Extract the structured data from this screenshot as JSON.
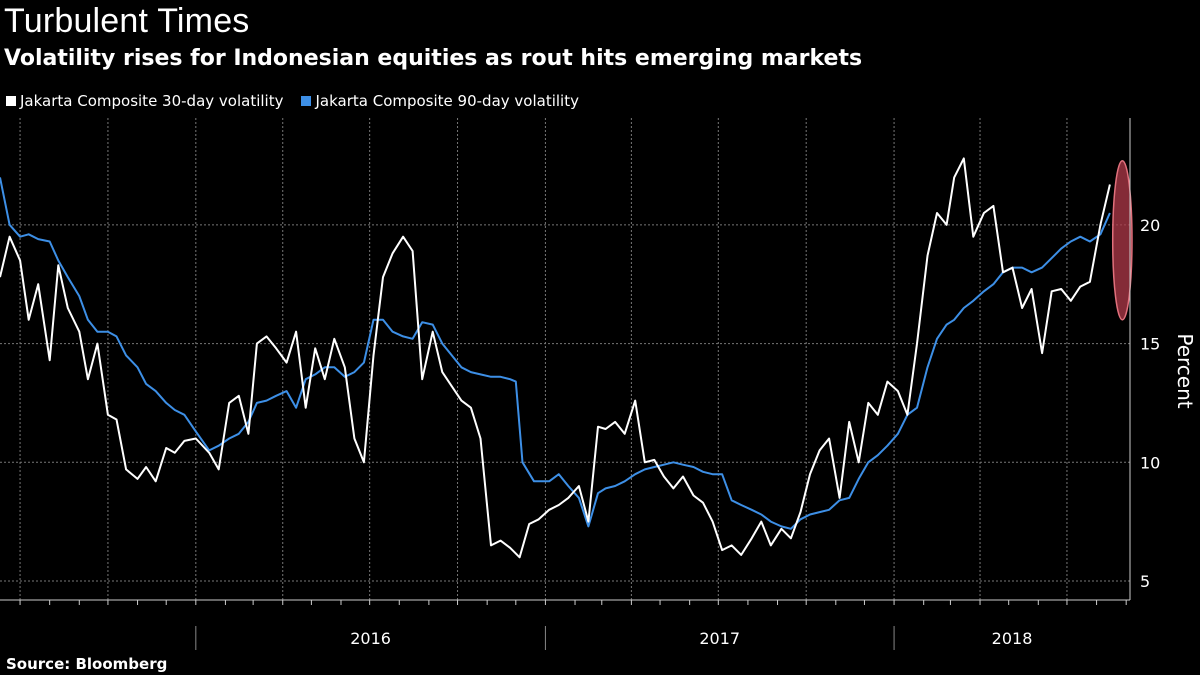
{
  "header": {
    "title": "Turbulent Times",
    "subtitle": "Volatility rises for Indonesian equities as rout hits emerging markets"
  },
  "legend": {
    "items": [
      {
        "label": "Jakarta Composite 30-day volatility",
        "color": "#ffffff"
      },
      {
        "label": "Jakarta Composite 90-day volatility",
        "color": "#3d8fe6"
      }
    ]
  },
  "footer": {
    "source": "Source: Bloomberg"
  },
  "chart_data": {
    "type": "line",
    "title": "Turbulent Times",
    "subtitle": "Volatility rises for Indonesian equities as rout hits emerging markets",
    "ylabel": "Percent",
    "xlabel": "",
    "ylim": [
      4.2,
      24.5
    ],
    "xlim": [
      "2015-06-10",
      "2018-09-05"
    ],
    "yticks": [
      5,
      10,
      15,
      20
    ],
    "year_labels": [
      "2016",
      "2017",
      "2018"
    ],
    "grid": true,
    "legend_position": "top-left",
    "highlight": {
      "x_from": "2018-08-20",
      "x_to": "2018-09-05",
      "y_from": 16.0,
      "y_to": 22.7,
      "color": "#b03a4a"
    },
    "series": [
      {
        "name": "Jakarta Composite 30-day volatility",
        "color": "#ffffff",
        "points": [
          [
            "2015-06-10",
            17.8
          ],
          [
            "2015-06-20",
            19.5
          ],
          [
            "2015-07-01",
            18.5
          ],
          [
            "2015-07-10",
            16.0
          ],
          [
            "2015-07-20",
            17.5
          ],
          [
            "2015-08-01",
            14.3
          ],
          [
            "2015-08-10",
            18.3
          ],
          [
            "2015-08-20",
            16.5
          ],
          [
            "2015-09-01",
            15.5
          ],
          [
            "2015-09-10",
            13.5
          ],
          [
            "2015-09-20",
            15.0
          ],
          [
            "2015-10-01",
            12.0
          ],
          [
            "2015-10-10",
            11.8
          ],
          [
            "2015-10-20",
            9.7
          ],
          [
            "2015-11-01",
            9.3
          ],
          [
            "2015-11-10",
            9.8
          ],
          [
            "2015-11-20",
            9.2
          ],
          [
            "2015-12-01",
            10.6
          ],
          [
            "2015-12-10",
            10.4
          ],
          [
            "2015-12-20",
            10.9
          ],
          [
            "2016-01-01",
            11.0
          ],
          [
            "2016-01-15",
            10.4
          ],
          [
            "2016-01-25",
            9.7
          ],
          [
            "2016-02-05",
            12.5
          ],
          [
            "2016-02-15",
            12.8
          ],
          [
            "2016-02-25",
            11.2
          ],
          [
            "2016-03-05",
            15.0
          ],
          [
            "2016-03-15",
            15.3
          ],
          [
            "2016-03-25",
            14.8
          ],
          [
            "2016-04-05",
            14.2
          ],
          [
            "2016-04-15",
            15.5
          ],
          [
            "2016-04-25",
            12.3
          ],
          [
            "2016-05-05",
            14.8
          ],
          [
            "2016-05-15",
            13.5
          ],
          [
            "2016-05-25",
            15.2
          ],
          [
            "2016-06-05",
            14.0
          ],
          [
            "2016-06-15",
            11.0
          ],
          [
            "2016-06-25",
            10.0
          ],
          [
            "2016-07-05",
            14.5
          ],
          [
            "2016-07-15",
            17.8
          ],
          [
            "2016-07-25",
            18.8
          ],
          [
            "2016-08-05",
            19.5
          ],
          [
            "2016-08-15",
            18.9
          ],
          [
            "2016-08-25",
            13.5
          ],
          [
            "2016-09-05",
            15.5
          ],
          [
            "2016-09-15",
            13.8
          ],
          [
            "2016-09-25",
            13.2
          ],
          [
            "2016-10-05",
            12.6
          ],
          [
            "2016-10-15",
            12.3
          ],
          [
            "2016-10-25",
            11.0
          ],
          [
            "2016-11-05",
            6.5
          ],
          [
            "2016-11-15",
            6.7
          ],
          [
            "2016-11-25",
            6.4
          ],
          [
            "2016-12-05",
            6.0
          ],
          [
            "2016-12-15",
            7.4
          ],
          [
            "2016-12-25",
            7.6
          ],
          [
            "2017-01-05",
            8.0
          ],
          [
            "2017-01-15",
            8.2
          ],
          [
            "2017-01-25",
            8.5
          ],
          [
            "2017-02-05",
            9.0
          ],
          [
            "2017-02-15",
            7.5
          ],
          [
            "2017-02-25",
            11.5
          ],
          [
            "2017-03-05",
            11.4
          ],
          [
            "2017-03-15",
            11.7
          ],
          [
            "2017-03-25",
            11.2
          ],
          [
            "2017-04-05",
            12.6
          ],
          [
            "2017-04-15",
            10.0
          ],
          [
            "2017-04-25",
            10.1
          ],
          [
            "2017-05-05",
            9.4
          ],
          [
            "2017-05-15",
            8.9
          ],
          [
            "2017-05-25",
            9.4
          ],
          [
            "2017-06-05",
            8.6
          ],
          [
            "2017-06-15",
            8.3
          ],
          [
            "2017-06-25",
            7.5
          ],
          [
            "2017-07-05",
            6.3
          ],
          [
            "2017-07-15",
            6.5
          ],
          [
            "2017-07-25",
            6.1
          ],
          [
            "2017-08-05",
            6.8
          ],
          [
            "2017-08-15",
            7.5
          ],
          [
            "2017-08-25",
            6.5
          ],
          [
            "2017-09-05",
            7.2
          ],
          [
            "2017-09-15",
            6.8
          ],
          [
            "2017-09-25",
            7.9
          ],
          [
            "2017-10-05",
            9.5
          ],
          [
            "2017-10-15",
            10.5
          ],
          [
            "2017-10-25",
            11.0
          ],
          [
            "2017-11-05",
            8.5
          ],
          [
            "2017-11-15",
            11.7
          ],
          [
            "2017-11-25",
            10.0
          ],
          [
            "2017-12-05",
            12.5
          ],
          [
            "2017-12-15",
            12.0
          ],
          [
            "2017-12-25",
            13.4
          ],
          [
            "2018-01-05",
            13.0
          ],
          [
            "2018-01-15",
            12.0
          ],
          [
            "2018-01-25",
            15.0
          ],
          [
            "2018-02-05",
            18.7
          ],
          [
            "2018-02-15",
            20.5
          ],
          [
            "2018-02-25",
            20.0
          ],
          [
            "2018-03-05",
            22.0
          ],
          [
            "2018-03-15",
            22.8
          ],
          [
            "2018-03-25",
            19.5
          ],
          [
            "2018-04-05",
            20.5
          ],
          [
            "2018-04-15",
            20.8
          ],
          [
            "2018-04-25",
            18.0
          ],
          [
            "2018-05-05",
            18.2
          ],
          [
            "2018-05-15",
            16.5
          ],
          [
            "2018-05-25",
            17.3
          ],
          [
            "2018-06-05",
            14.6
          ],
          [
            "2018-06-15",
            17.2
          ],
          [
            "2018-06-25",
            17.3
          ],
          [
            "2018-07-05",
            16.8
          ],
          [
            "2018-07-15",
            17.4
          ],
          [
            "2018-07-25",
            17.6
          ],
          [
            "2018-08-05",
            20.0
          ],
          [
            "2018-08-15",
            21.7
          ]
        ]
      },
      {
        "name": "Jakarta Composite 90-day volatility",
        "color": "#3d8fe6",
        "points": [
          [
            "2015-06-10",
            22.0
          ],
          [
            "2015-06-20",
            20.0
          ],
          [
            "2015-07-01",
            19.5
          ],
          [
            "2015-07-10",
            19.6
          ],
          [
            "2015-07-20",
            19.4
          ],
          [
            "2015-08-01",
            19.3
          ],
          [
            "2015-08-10",
            18.5
          ],
          [
            "2015-08-20",
            17.8
          ],
          [
            "2015-09-01",
            17.0
          ],
          [
            "2015-09-10",
            16.0
          ],
          [
            "2015-09-20",
            15.5
          ],
          [
            "2015-10-01",
            15.5
          ],
          [
            "2015-10-10",
            15.3
          ],
          [
            "2015-10-20",
            14.5
          ],
          [
            "2015-11-01",
            14.0
          ],
          [
            "2015-11-10",
            13.3
          ],
          [
            "2015-11-20",
            13.0
          ],
          [
            "2015-12-01",
            12.5
          ],
          [
            "2015-12-10",
            12.2
          ],
          [
            "2015-12-20",
            12.0
          ],
          [
            "2016-01-01",
            11.3
          ],
          [
            "2016-01-15",
            10.5
          ],
          [
            "2016-01-25",
            10.7
          ],
          [
            "2016-02-05",
            11.0
          ],
          [
            "2016-02-15",
            11.2
          ],
          [
            "2016-02-25",
            11.7
          ],
          [
            "2016-03-05",
            12.5
          ],
          [
            "2016-03-15",
            12.6
          ],
          [
            "2016-03-25",
            12.8
          ],
          [
            "2016-04-05",
            13.0
          ],
          [
            "2016-04-15",
            12.3
          ],
          [
            "2016-04-25",
            13.5
          ],
          [
            "2016-05-05",
            13.7
          ],
          [
            "2016-05-15",
            14.0
          ],
          [
            "2016-05-25",
            14.0
          ],
          [
            "2016-06-05",
            13.6
          ],
          [
            "2016-06-15",
            13.8
          ],
          [
            "2016-06-25",
            14.2
          ],
          [
            "2016-07-05",
            16.0
          ],
          [
            "2016-07-15",
            16.0
          ],
          [
            "2016-07-25",
            15.5
          ],
          [
            "2016-08-05",
            15.3
          ],
          [
            "2016-08-15",
            15.2
          ],
          [
            "2016-08-25",
            15.9
          ],
          [
            "2016-09-05",
            15.8
          ],
          [
            "2016-09-15",
            15.0
          ],
          [
            "2016-09-25",
            14.5
          ],
          [
            "2016-10-05",
            14.0
          ],
          [
            "2016-10-15",
            13.8
          ],
          [
            "2016-10-25",
            13.7
          ],
          [
            "2016-11-05",
            13.6
          ],
          [
            "2016-11-15",
            13.6
          ],
          [
            "2016-11-25",
            13.5
          ],
          [
            "2016-12-01",
            13.4
          ],
          [
            "2016-12-08",
            10.0
          ],
          [
            "2016-12-20",
            9.2
          ],
          [
            "2017-01-05",
            9.2
          ],
          [
            "2017-01-15",
            9.5
          ],
          [
            "2017-01-25",
            9.0
          ],
          [
            "2017-02-05",
            8.5
          ],
          [
            "2017-02-15",
            7.3
          ],
          [
            "2017-02-25",
            8.7
          ],
          [
            "2017-03-05",
            8.9
          ],
          [
            "2017-03-15",
            9.0
          ],
          [
            "2017-03-25",
            9.2
          ],
          [
            "2017-04-05",
            9.5
          ],
          [
            "2017-04-15",
            9.7
          ],
          [
            "2017-04-25",
            9.8
          ],
          [
            "2017-05-05",
            9.9
          ],
          [
            "2017-05-15",
            10.0
          ],
          [
            "2017-05-25",
            9.9
          ],
          [
            "2017-06-05",
            9.8
          ],
          [
            "2017-06-15",
            9.6
          ],
          [
            "2017-06-25",
            9.5
          ],
          [
            "2017-07-05",
            9.5
          ],
          [
            "2017-07-15",
            8.4
          ],
          [
            "2017-07-25",
            8.2
          ],
          [
            "2017-08-05",
            8.0
          ],
          [
            "2017-08-15",
            7.8
          ],
          [
            "2017-08-25",
            7.5
          ],
          [
            "2017-09-05",
            7.3
          ],
          [
            "2017-09-15",
            7.2
          ],
          [
            "2017-09-25",
            7.6
          ],
          [
            "2017-10-05",
            7.8
          ],
          [
            "2017-10-15",
            7.9
          ],
          [
            "2017-10-25",
            8.0
          ],
          [
            "2017-11-05",
            8.4
          ],
          [
            "2017-11-15",
            8.5
          ],
          [
            "2017-11-25",
            9.3
          ],
          [
            "2017-12-05",
            10.0
          ],
          [
            "2017-12-15",
            10.3
          ],
          [
            "2017-12-25",
            10.7
          ],
          [
            "2018-01-05",
            11.2
          ],
          [
            "2018-01-15",
            12.0
          ],
          [
            "2018-01-25",
            12.3
          ],
          [
            "2018-02-05",
            14.0
          ],
          [
            "2018-02-15",
            15.2
          ],
          [
            "2018-02-25",
            15.8
          ],
          [
            "2018-03-05",
            16.0
          ],
          [
            "2018-03-15",
            16.5
          ],
          [
            "2018-03-25",
            16.8
          ],
          [
            "2018-04-05",
            17.2
          ],
          [
            "2018-04-15",
            17.5
          ],
          [
            "2018-04-25",
            18.0
          ],
          [
            "2018-05-05",
            18.2
          ],
          [
            "2018-05-15",
            18.2
          ],
          [
            "2018-05-25",
            18.0
          ],
          [
            "2018-06-05",
            18.2
          ],
          [
            "2018-06-15",
            18.6
          ],
          [
            "2018-06-25",
            19.0
          ],
          [
            "2018-07-05",
            19.3
          ],
          [
            "2018-07-15",
            19.5
          ],
          [
            "2018-07-25",
            19.3
          ],
          [
            "2018-08-05",
            19.6
          ],
          [
            "2018-08-15",
            20.5
          ]
        ]
      }
    ]
  }
}
